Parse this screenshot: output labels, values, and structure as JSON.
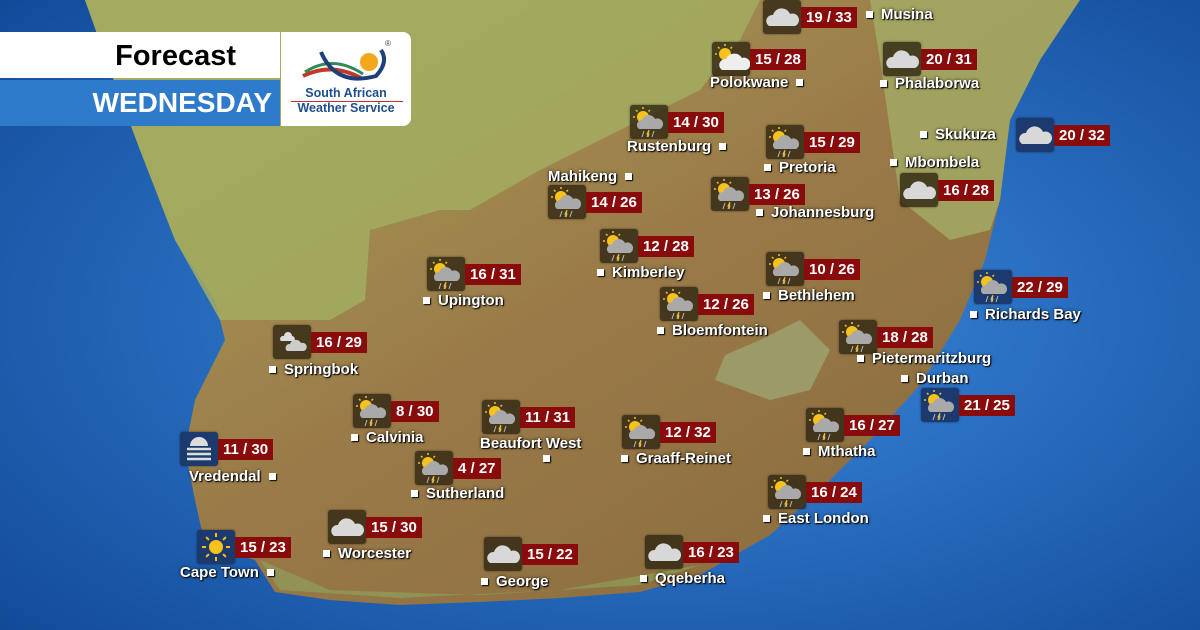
{
  "header": {
    "title": "Forecast",
    "day": "WEDNESDAY"
  },
  "logo": {
    "line1": "South African",
    "line2": "Weather Service",
    "registered": "®"
  },
  "colors": {
    "temp_box": "#8a0b0b",
    "day_banner": "#2f7bcb",
    "inland_icon_box": "#32281a",
    "coastal_icon_box": "#1c3a6e",
    "ocean": "#1b5fb0"
  },
  "cities": [
    {
      "name": "Musina",
      "temps": "19 / 33",
      "icon": "cloudy-icon",
      "coastal": false
    },
    {
      "name": "Polokwane",
      "temps": "15 / 28",
      "icon": "partly-cloudy-icon",
      "coastal": false
    },
    {
      "name": "Phalaborwa",
      "temps": "20 / 31",
      "icon": "cloudy-icon",
      "coastal": false
    },
    {
      "name": "Rustenburg",
      "temps": "14 / 30",
      "icon": "partly-cloudy-thunderstorm-icon",
      "coastal": false
    },
    {
      "name": "Pretoria",
      "temps": "15 / 29",
      "icon": "partly-cloudy-thunderstorm-icon",
      "coastal": false
    },
    {
      "name": "Skukuza",
      "temps": "20 / 32",
      "icon": "cloudy-icon",
      "coastal": true
    },
    {
      "name": "Mbombela",
      "temps": "16 / 28",
      "icon": "cloudy-icon",
      "coastal": false
    },
    {
      "name": "Mahikeng",
      "temps": "14 / 26",
      "icon": "partly-cloudy-thunderstorm-icon",
      "coastal": false
    },
    {
      "name": "Johannesburg",
      "temps": "13 / 26",
      "icon": "partly-cloudy-thunderstorm-icon",
      "coastal": false
    },
    {
      "name": "Kimberley",
      "temps": "12 / 28",
      "icon": "partly-cloudy-thunderstorm-icon",
      "coastal": false
    },
    {
      "name": "Upington",
      "temps": "16 / 31",
      "icon": "partly-cloudy-thunderstorm-icon",
      "coastal": false
    },
    {
      "name": "Bethlehem",
      "temps": "10 / 26",
      "icon": "partly-cloudy-thunderstorm-icon",
      "coastal": false
    },
    {
      "name": "Richards Bay",
      "temps": "22 / 29",
      "icon": "partly-cloudy-thunderstorm-icon",
      "coastal": true
    },
    {
      "name": "Bloemfontein",
      "temps": "12 / 26",
      "icon": "partly-cloudy-thunderstorm-icon",
      "coastal": false
    },
    {
      "name": "Springbok",
      "temps": "16 / 29",
      "icon": "partly-cloudy-night-icon",
      "coastal": false
    },
    {
      "name": "Pietermaritzburg",
      "temps": "18 / 28",
      "icon": "partly-cloudy-thunderstorm-icon",
      "coastal": false
    },
    {
      "name": "Durban",
      "temps": "21 / 25",
      "icon": "partly-cloudy-thunderstorm-icon",
      "coastal": true
    },
    {
      "name": "Calvinia",
      "temps": "8 / 30",
      "icon": "partly-cloudy-thunderstorm-icon",
      "coastal": false
    },
    {
      "name": "Beaufort West",
      "temps": "11 / 31",
      "icon": "partly-cloudy-thunderstorm-icon",
      "coastal": false
    },
    {
      "name": "Graaff-Reinet",
      "temps": "12 / 32",
      "icon": "partly-cloudy-thunderstorm-icon",
      "coastal": false
    },
    {
      "name": "Mthatha",
      "temps": "16 / 27",
      "icon": "partly-cloudy-thunderstorm-icon",
      "coastal": false
    },
    {
      "name": "Vredendal",
      "temps": "11 / 30",
      "icon": "fog-icon",
      "coastal": true
    },
    {
      "name": "Sutherland",
      "temps": "4 / 27",
      "icon": "partly-cloudy-thunderstorm-icon",
      "coastal": false
    },
    {
      "name": "East London",
      "temps": "16 / 24",
      "icon": "partly-cloudy-thunderstorm-icon",
      "coastal": false
    },
    {
      "name": "Worcester",
      "temps": "15 / 30",
      "icon": "cloudy-icon",
      "coastal": false
    },
    {
      "name": "Cape Town",
      "temps": "15 / 23",
      "icon": "sunny-icon",
      "coastal": true
    },
    {
      "name": "George",
      "temps": "15 / 22",
      "icon": "cloudy-icon",
      "coastal": false
    },
    {
      "name": "Qqeberha",
      "temps": "16 / 23",
      "icon": "cloudy-icon",
      "coastal": false
    }
  ]
}
